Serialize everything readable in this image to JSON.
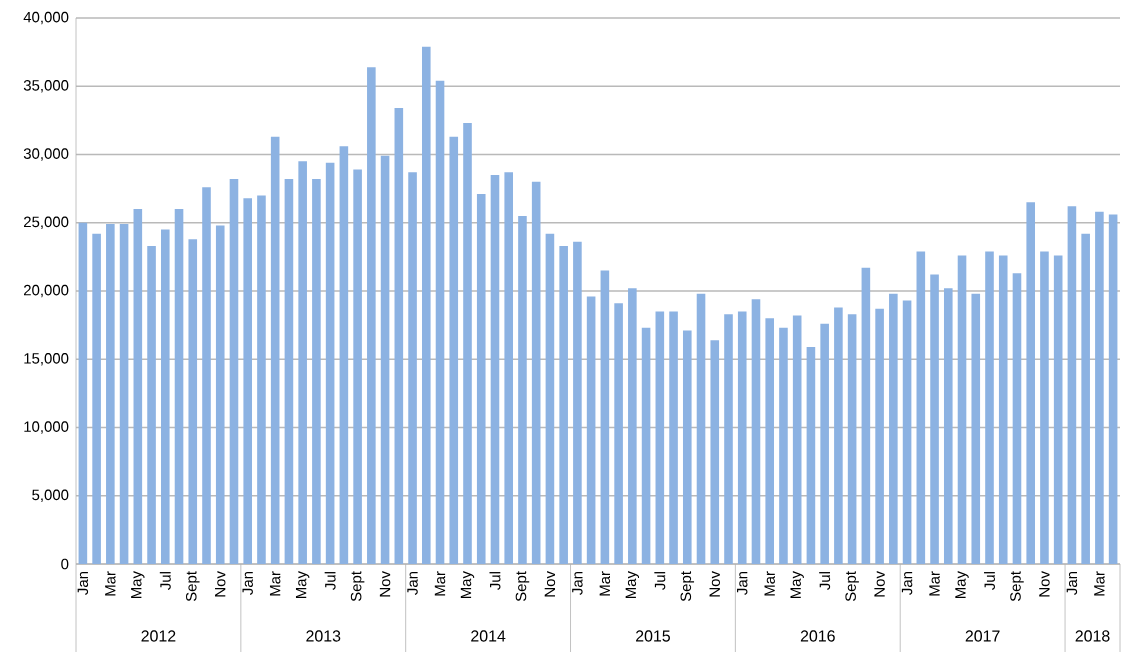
{
  "chart_data": {
    "type": "bar",
    "categories": [
      "Jan",
      null,
      "Mar",
      null,
      "May",
      null,
      "Jul",
      null,
      "Sept",
      null,
      "Nov",
      null,
      "Jan",
      null,
      "Mar",
      null,
      "May",
      null,
      "Jul",
      null,
      "Sept",
      null,
      "Nov",
      null,
      "Jan",
      null,
      "Mar",
      null,
      "May",
      null,
      "Jul",
      null,
      "Sept",
      null,
      "Nov",
      null,
      "Jan",
      null,
      "Mar",
      null,
      "May",
      null,
      "Jul",
      null,
      "Sept",
      null,
      "Nov",
      null,
      "Jan",
      null,
      "Mar",
      null,
      "May",
      null,
      "Jul",
      null,
      "Sept",
      null,
      "Nov",
      null,
      "Jan",
      null,
      "Mar",
      null,
      "May",
      null,
      "Jul",
      null,
      "Sept",
      null,
      "Nov",
      null,
      "Jan",
      null,
      "Mar",
      null
    ],
    "values": [
      25000,
      24200,
      24900,
      24900,
      26000,
      23300,
      24500,
      26000,
      23800,
      27600,
      24800,
      28200,
      26800,
      27000,
      31300,
      28200,
      29500,
      28200,
      29400,
      30600,
      28900,
      36400,
      29900,
      33400,
      28700,
      37900,
      35400,
      31300,
      32300,
      27100,
      28500,
      28700,
      25500,
      28000,
      24200,
      23300,
      23600,
      19600,
      21500,
      19100,
      20200,
      17300,
      18500,
      18500,
      17100,
      19800,
      16400,
      18300,
      18500,
      19400,
      18000,
      17300,
      18200,
      15900,
      17600,
      18800,
      18300,
      21700,
      18700,
      19800,
      19300,
      22900,
      21200,
      20200,
      22600,
      19800,
      22900,
      22600,
      21300,
      26500,
      22900,
      22600,
      26200,
      24200,
      25800,
      25600
    ],
    "color": "#8cb2e2",
    "ylim": [
      0,
      40000
    ],
    "yticks": [
      {
        "value": 0,
        "label": "0"
      },
      {
        "value": 5000,
        "label": "5,000"
      },
      {
        "value": 10000,
        "label": "10,000"
      },
      {
        "value": 15000,
        "label": "15,000"
      },
      {
        "value": 20000,
        "label": "20,000"
      },
      {
        "value": 25000,
        "label": "25,000"
      },
      {
        "value": 30000,
        "label": "30,000"
      },
      {
        "value": 35000,
        "label": "35,000"
      },
      {
        "value": 40000,
        "label": "40,000"
      }
    ],
    "grid": "y",
    "annotations": [
      "2012",
      "2013",
      "2014",
      "2015",
      "2016",
      "2017",
      "2018"
    ]
  }
}
